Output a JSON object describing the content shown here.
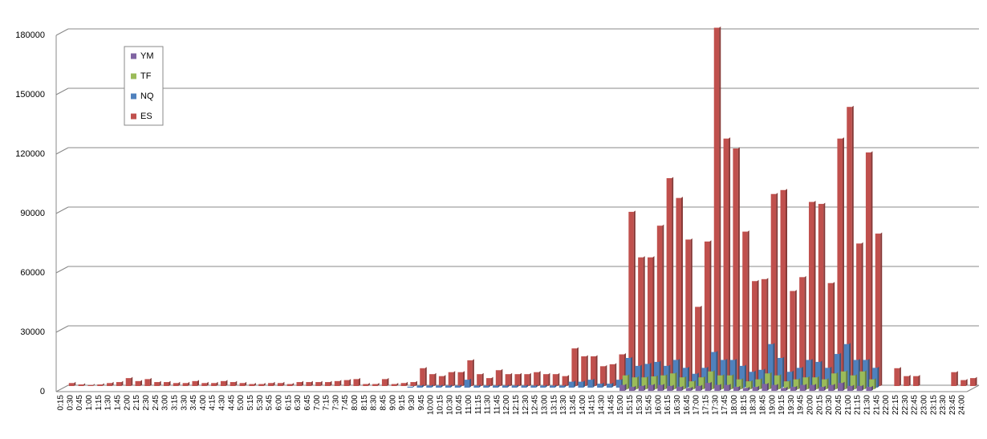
{
  "chart_data": {
    "type": "bar3d",
    "categories": [
      "0:15",
      "0:30",
      "0:45",
      "1:00",
      "1:15",
      "1:30",
      "1:45",
      "2:00",
      "2:15",
      "2:30",
      "2:45",
      "3:00",
      "3:15",
      "3:30",
      "3:45",
      "4:00",
      "4:15",
      "4:30",
      "4:45",
      "5:00",
      "5:15",
      "5:30",
      "5:45",
      "6:00",
      "6:15",
      "6:30",
      "6:45",
      "7:00",
      "7:15",
      "7:30",
      "7:45",
      "8:00",
      "8:15",
      "8:30",
      "8:45",
      "9:00",
      "9:15",
      "9:30",
      "9:45",
      "10:00",
      "10:15",
      "10:30",
      "10:45",
      "11:00",
      "11:15",
      "11:30",
      "11:45",
      "12:00",
      "12:15",
      "12:30",
      "12:45",
      "13:00",
      "13:15",
      "13:30",
      "13:45",
      "14:00",
      "14:15",
      "14:30",
      "14:45",
      "15:00",
      "15:15",
      "15:30",
      "15:45",
      "16:00",
      "16:15",
      "16:30",
      "16:45",
      "17:00",
      "17:15",
      "17:30",
      "17:45",
      "18:00",
      "18:15",
      "18:30",
      "18:45",
      "19:00",
      "19:15",
      "19:30",
      "19:45",
      "20:00",
      "20:15",
      "20:30",
      "20:45",
      "21:00",
      "21:15",
      "21:30",
      "21:45",
      "22:00",
      "22:15",
      "22:30",
      "22:45",
      "23:00",
      "23:15",
      "23:30",
      "23:45",
      "24:00"
    ],
    "series": [
      {
        "name": "YM",
        "color": "#8064a2",
        "values": [
          0,
          0,
          0,
          0,
          0,
          0,
          0,
          0,
          0,
          0,
          0,
          0,
          0,
          0,
          0,
          0,
          0,
          0,
          0,
          0,
          0,
          0,
          0,
          0,
          0,
          0,
          0,
          0,
          0,
          0,
          0,
          0,
          0,
          0,
          0,
          0,
          0,
          0,
          0,
          0,
          0,
          0,
          0,
          0,
          0,
          0,
          0,
          0,
          0,
          0,
          0,
          0,
          0,
          0,
          0,
          0,
          0,
          0,
          0,
          3000,
          2000,
          2500,
          3000,
          3000,
          2500,
          2000,
          1500,
          2500,
          4000,
          3000,
          3000,
          2000,
          1500,
          2000,
          3500,
          3000,
          1500,
          2000,
          3000,
          3000,
          2000,
          3000,
          4000,
          2500,
          2500,
          2000,
          0,
          0,
          0,
          0,
          0,
          0,
          0,
          0,
          0,
          0
        ]
      },
      {
        "name": "TF",
        "color": "#9bbb59",
        "values": [
          0,
          0,
          0,
          0,
          0,
          0,
          0,
          0,
          0,
          0,
          0,
          0,
          0,
          0,
          0,
          0,
          0,
          0,
          0,
          0,
          0,
          0,
          0,
          0,
          0,
          0,
          0,
          0,
          0,
          0,
          0,
          0,
          0,
          0,
          0,
          0,
          0,
          0,
          0,
          0,
          0,
          0,
          0,
          0,
          0,
          0,
          0,
          0,
          0,
          0,
          0,
          0,
          0,
          0,
          0,
          0,
          0,
          0,
          0,
          7000,
          6000,
          6000,
          6500,
          7000,
          8000,
          6000,
          4000,
          6000,
          9000,
          7000,
          7000,
          5000,
          4000,
          5000,
          8000,
          7000,
          4000,
          5000,
          6000,
          6000,
          5000,
          8000,
          9000,
          7000,
          9000,
          5000,
          0,
          0,
          0,
          0,
          0,
          0,
          0,
          0,
          0,
          0
        ]
      },
      {
        "name": "NQ",
        "color": "#4f81bd",
        "values": [
          0,
          0,
          0,
          0,
          0,
          0,
          0,
          0,
          0,
          0,
          0,
          0,
          0,
          0,
          0,
          0,
          0,
          0,
          0,
          0,
          0,
          0,
          0,
          0,
          0,
          0,
          0,
          0,
          0,
          0,
          0,
          0,
          0,
          0,
          0,
          0,
          500,
          1000,
          1000,
          1000,
          1000,
          1000,
          4000,
          1000,
          1000,
          1000,
          1000,
          1000,
          1000,
          1000,
          1000,
          1000,
          1000,
          3000,
          3000,
          4000,
          2000,
          2000,
          4000,
          15000,
          11000,
          12000,
          13000,
          11000,
          14000,
          10000,
          7000,
          10000,
          18000,
          14000,
          14000,
          11000,
          8000,
          9000,
          22000,
          15000,
          8000,
          10000,
          14000,
          13000,
          10000,
          17000,
          22000,
          14000,
          14000,
          10000,
          0,
          0,
          0,
          0,
          0,
          0,
          0,
          0,
          0,
          0
        ]
      },
      {
        "name": "ES",
        "color": "#c0504d",
        "values": [
          1500,
          800,
          500,
          800,
          1500,
          2000,
          4000,
          2500,
          3500,
          2000,
          2000,
          1500,
          1500,
          2500,
          1500,
          1500,
          2500,
          2000,
          1500,
          1000,
          1000,
          1500,
          1500,
          1000,
          2000,
          2000,
          2000,
          2000,
          2500,
          3000,
          3500,
          1000,
          1000,
          3500,
          1000,
          1500,
          2000,
          9000,
          6000,
          5000,
          7000,
          7000,
          13000,
          6000,
          4000,
          8000,
          6000,
          6000,
          6000,
          7000,
          6000,
          6000,
          5000,
          19000,
          15000,
          15000,
          10000,
          11000,
          16000,
          88000,
          65000,
          65000,
          81000,
          105000,
          95000,
          74000,
          40000,
          73000,
          181000,
          125000,
          120000,
          78000,
          53000,
          54000,
          97000,
          99000,
          48000,
          55000,
          93000,
          92000,
          52000,
          125000,
          141000,
          72000,
          118000,
          77000,
          0,
          9000,
          5000,
          5000,
          0,
          0,
          0,
          7000,
          3000,
          4000
        ]
      }
    ],
    "ylim": [
      0,
      180000
    ],
    "yticks": [
      0,
      30000,
      60000,
      90000,
      120000,
      150000,
      180000
    ],
    "grid": true,
    "legend": "top-left"
  }
}
